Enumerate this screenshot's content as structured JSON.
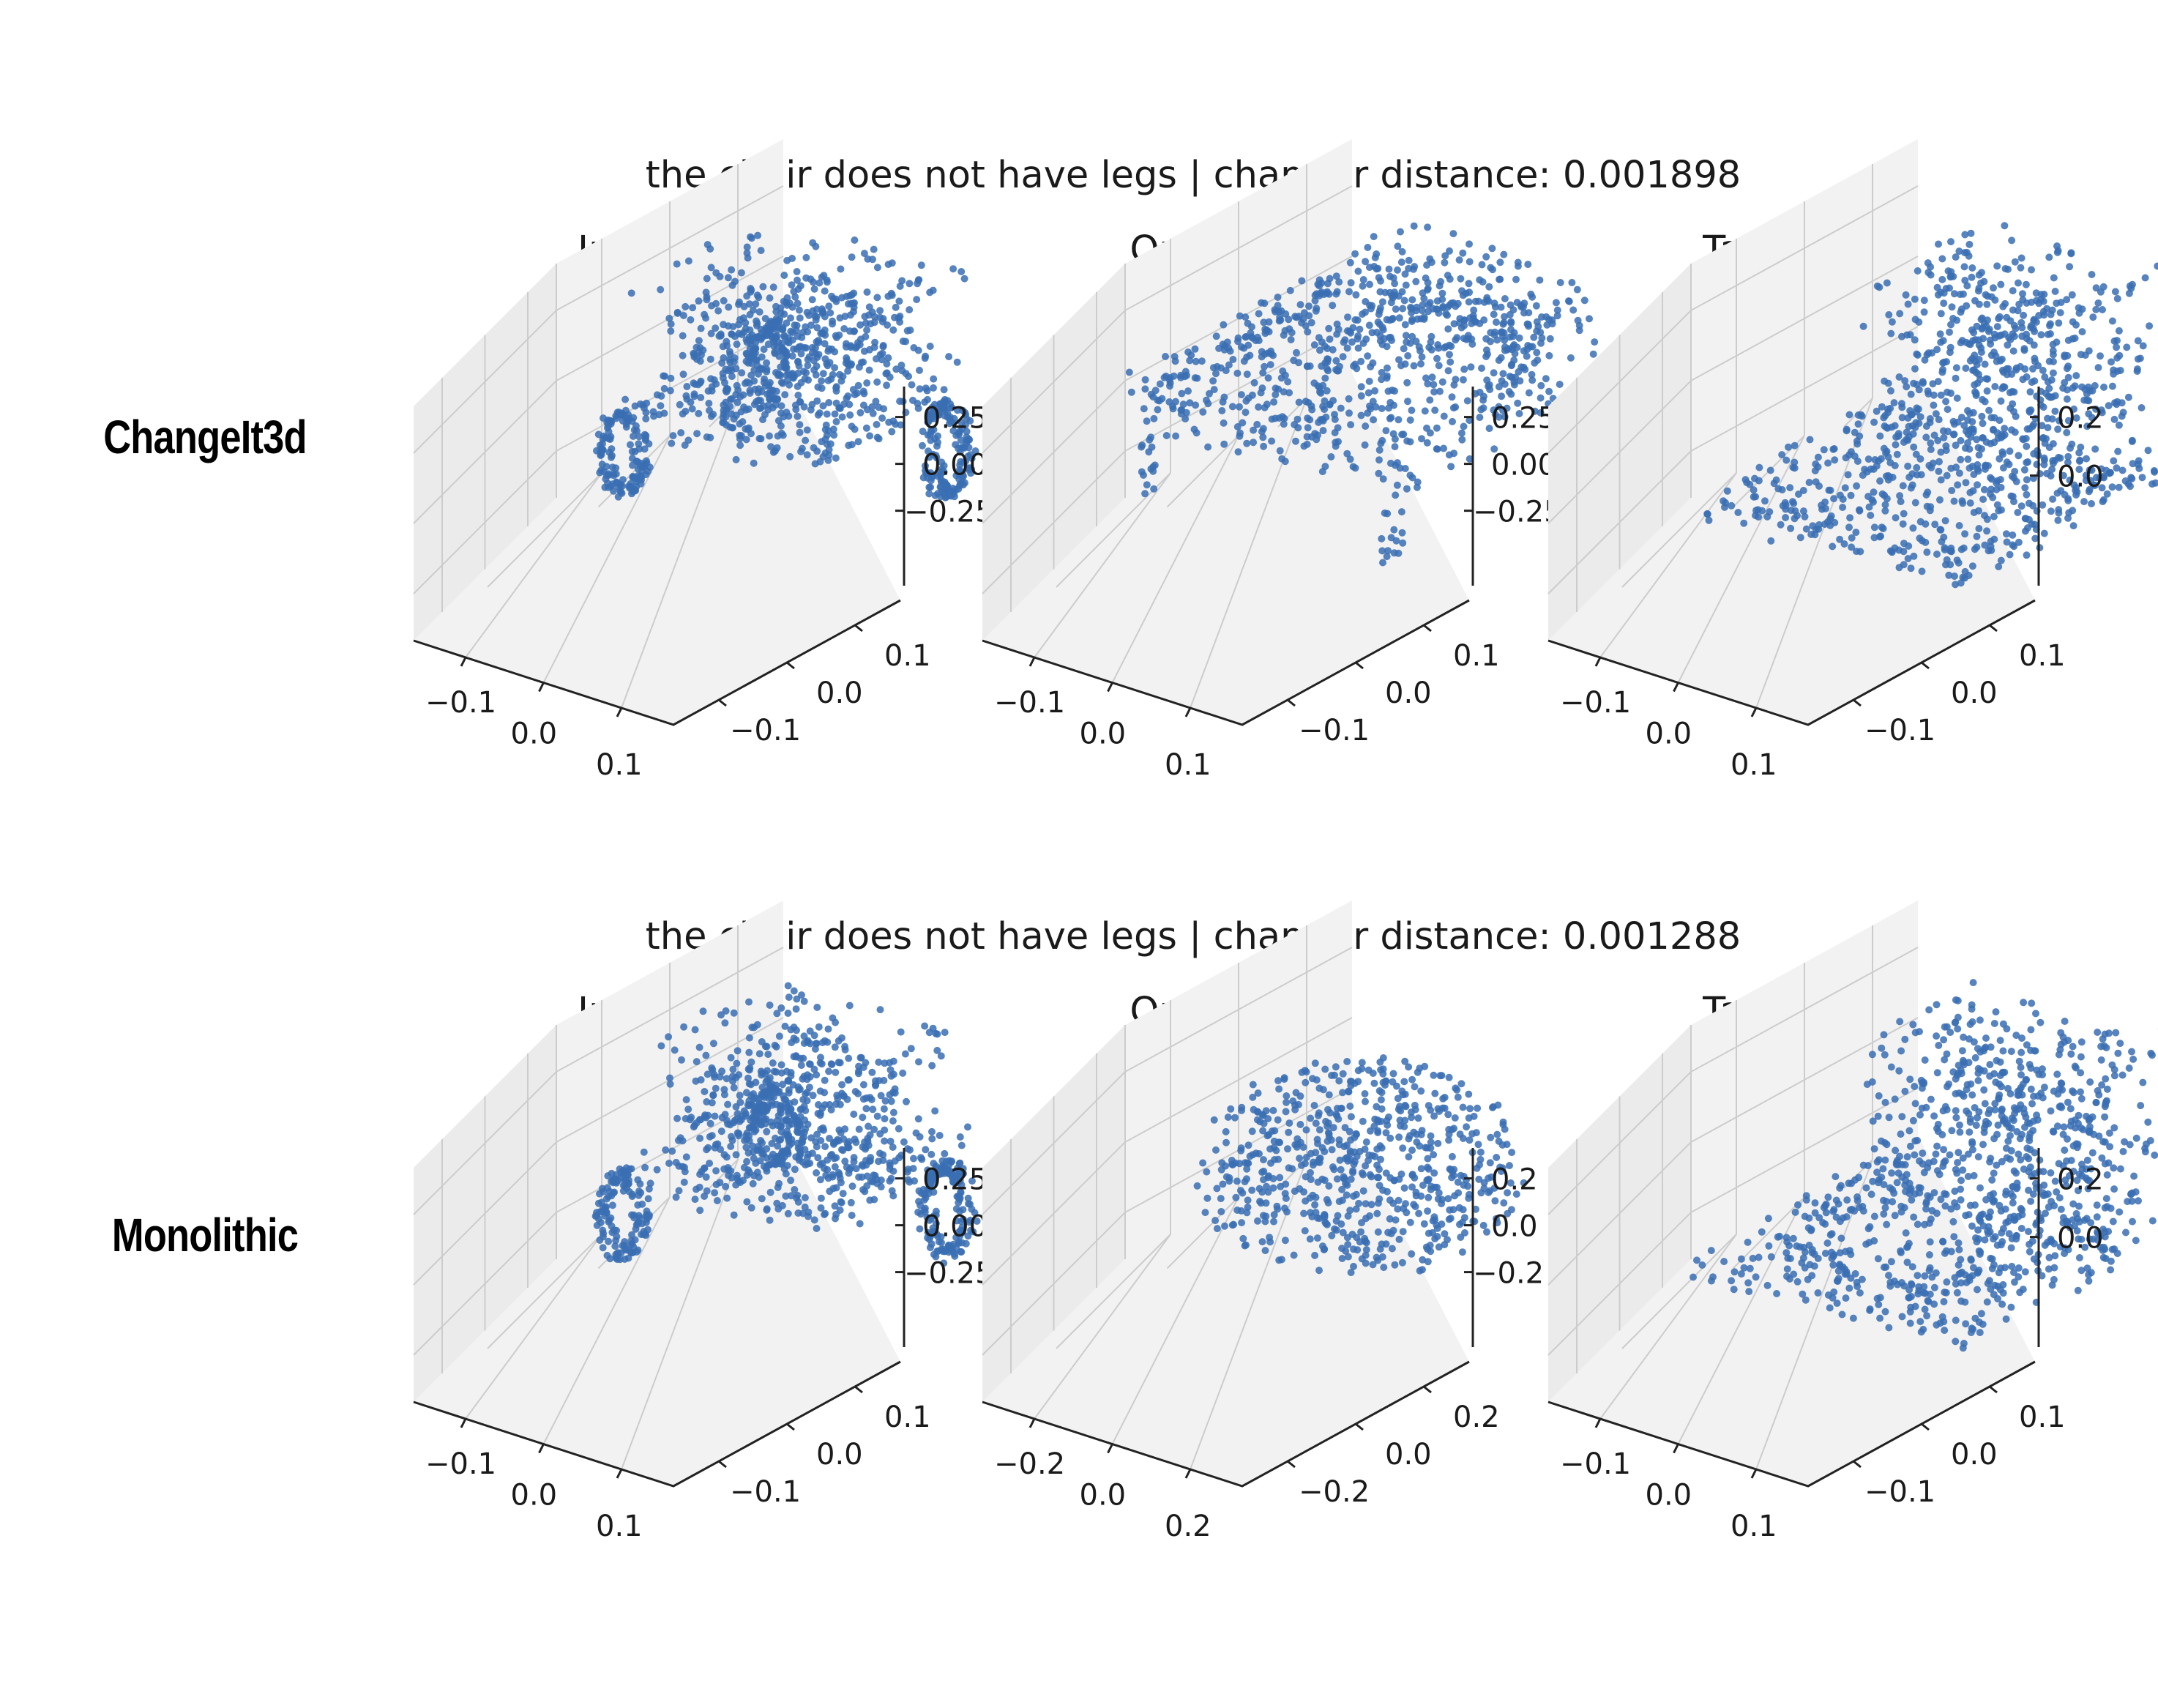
{
  "colors": {
    "points": "#3a6eb3",
    "pane": "#f2f2f2",
    "pane_side": "#ebebeb",
    "grid": "#cccccc",
    "axis": "#222222"
  },
  "rows": [
    {
      "label": "ChangeIt3d",
      "suptitle": "the chair does not have legs | chamfer distance: 0.001898"
    },
    {
      "label": "Monolithic",
      "suptitle": "the chair does not have legs | chamfer distance: 0.001288"
    }
  ],
  "chart_data": [
    {
      "type": "scatter",
      "subplot": "row1-input",
      "title": "Input",
      "shape": "car",
      "xticks": [
        "−0.1",
        "0.0",
        "0.1"
      ],
      "yticks": [
        "0.1",
        "0.0",
        "−0.1"
      ],
      "zticks": [
        "0.25",
        "0.00",
        "−0.25"
      ]
    },
    {
      "type": "scatter",
      "subplot": "row1-output",
      "title": "Output",
      "shape": "armchair-with-legs",
      "xticks": [
        "−0.1",
        "0.0",
        "0.1"
      ],
      "yticks": [
        "0.1",
        "0.0",
        "−0.1"
      ],
      "zticks": [
        "0.25",
        "0.00",
        "−0.25"
      ]
    },
    {
      "type": "scatter",
      "subplot": "row1-target",
      "title": "Target",
      "shape": "legless-chair",
      "xticks": [
        "−0.1",
        "0.0",
        "0.1"
      ],
      "yticks": [
        "0.1",
        "0.0",
        "−0.1"
      ],
      "zticks": [
        "0.2",
        "0.0"
      ]
    },
    {
      "type": "scatter",
      "subplot": "row2-input",
      "title": "Input",
      "shape": "car",
      "xticks": [
        "−0.1",
        "0.0",
        "0.1"
      ],
      "yticks": [
        "0.1",
        "0.0",
        "−0.1"
      ],
      "zticks": [
        "0.25",
        "0.00",
        "−0.25"
      ]
    },
    {
      "type": "scatter",
      "subplot": "row2-output",
      "title": "Output",
      "shape": "blob",
      "xticks": [
        "−0.2",
        "0.0",
        "0.2"
      ],
      "yticks": [
        "0.2",
        "0.0",
        "−0.2"
      ],
      "zticks": [
        "0.2",
        "0.0",
        "−0.2"
      ]
    },
    {
      "type": "scatter",
      "subplot": "row2-target",
      "title": "Target",
      "shape": "legless-chair",
      "xticks": [
        "−0.1",
        "0.0",
        "0.1"
      ],
      "yticks": [
        "0.1",
        "0.0",
        "−0.1"
      ],
      "zticks": [
        "0.2",
        "0.0"
      ]
    }
  ]
}
